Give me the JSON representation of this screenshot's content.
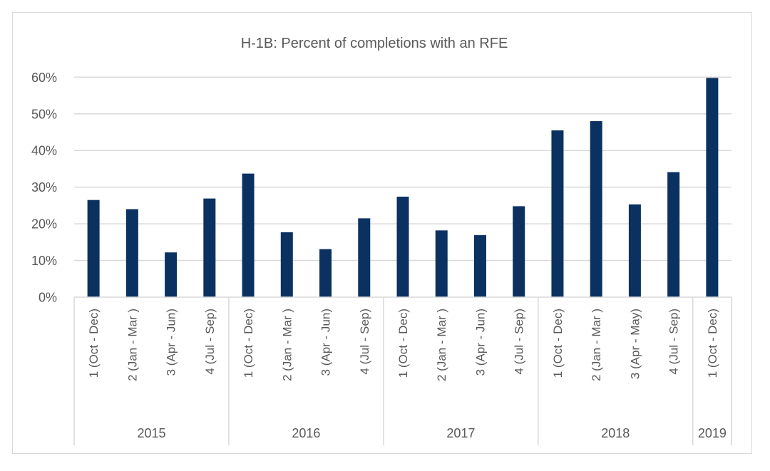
{
  "chart_data": {
    "type": "bar",
    "title": "H-1B: Percent of completions with an RFE",
    "xlabel": "",
    "ylabel": "",
    "ylim": [
      0,
      60
    ],
    "yticks": [
      0,
      10,
      20,
      30,
      40,
      50,
      60
    ],
    "ytick_labels": [
      "0%",
      "10%",
      "20%",
      "30%",
      "40%",
      "50%",
      "60%"
    ],
    "grid": true,
    "legend": "none",
    "bar_color": "#0b3161",
    "grid_color": "#d9d9d9",
    "text_color": "#595959",
    "categories": [
      "1 (Oct - Dec)",
      "2 (Jan - Mar )",
      "3 (Apr - Jun)",
      "4 (Jul - Sep)",
      "1 (Oct - Dec)",
      "2 (Jan - Mar )",
      "3 (Apr - Jun)",
      "4 (Jul - Sep)",
      "1 (Oct - Dec)",
      "2 (Jan - Mar )",
      "3 (Apr - Jun)",
      "4 (Jul - Sep)",
      "1 (Oct - Dec)",
      "2 (Jan - Mar )",
      "3 (Apr - May)",
      "4 (Jul - Sep)",
      "1 (Oct - Dec)"
    ],
    "groups": [
      {
        "label": "2015",
        "count": 4
      },
      {
        "label": "2016",
        "count": 4
      },
      {
        "label": "2017",
        "count": 4
      },
      {
        "label": "2018",
        "count": 4
      },
      {
        "label": "2019",
        "count": 1
      }
    ],
    "series": [
      {
        "name": "Percent of completions with an RFE",
        "values": [
          26.5,
          24.0,
          12.2,
          26.9,
          33.7,
          17.7,
          13.1,
          21.5,
          27.4,
          18.2,
          16.9,
          24.8,
          45.5,
          48.0,
          25.3,
          34.1,
          59.8
        ]
      }
    ]
  }
}
